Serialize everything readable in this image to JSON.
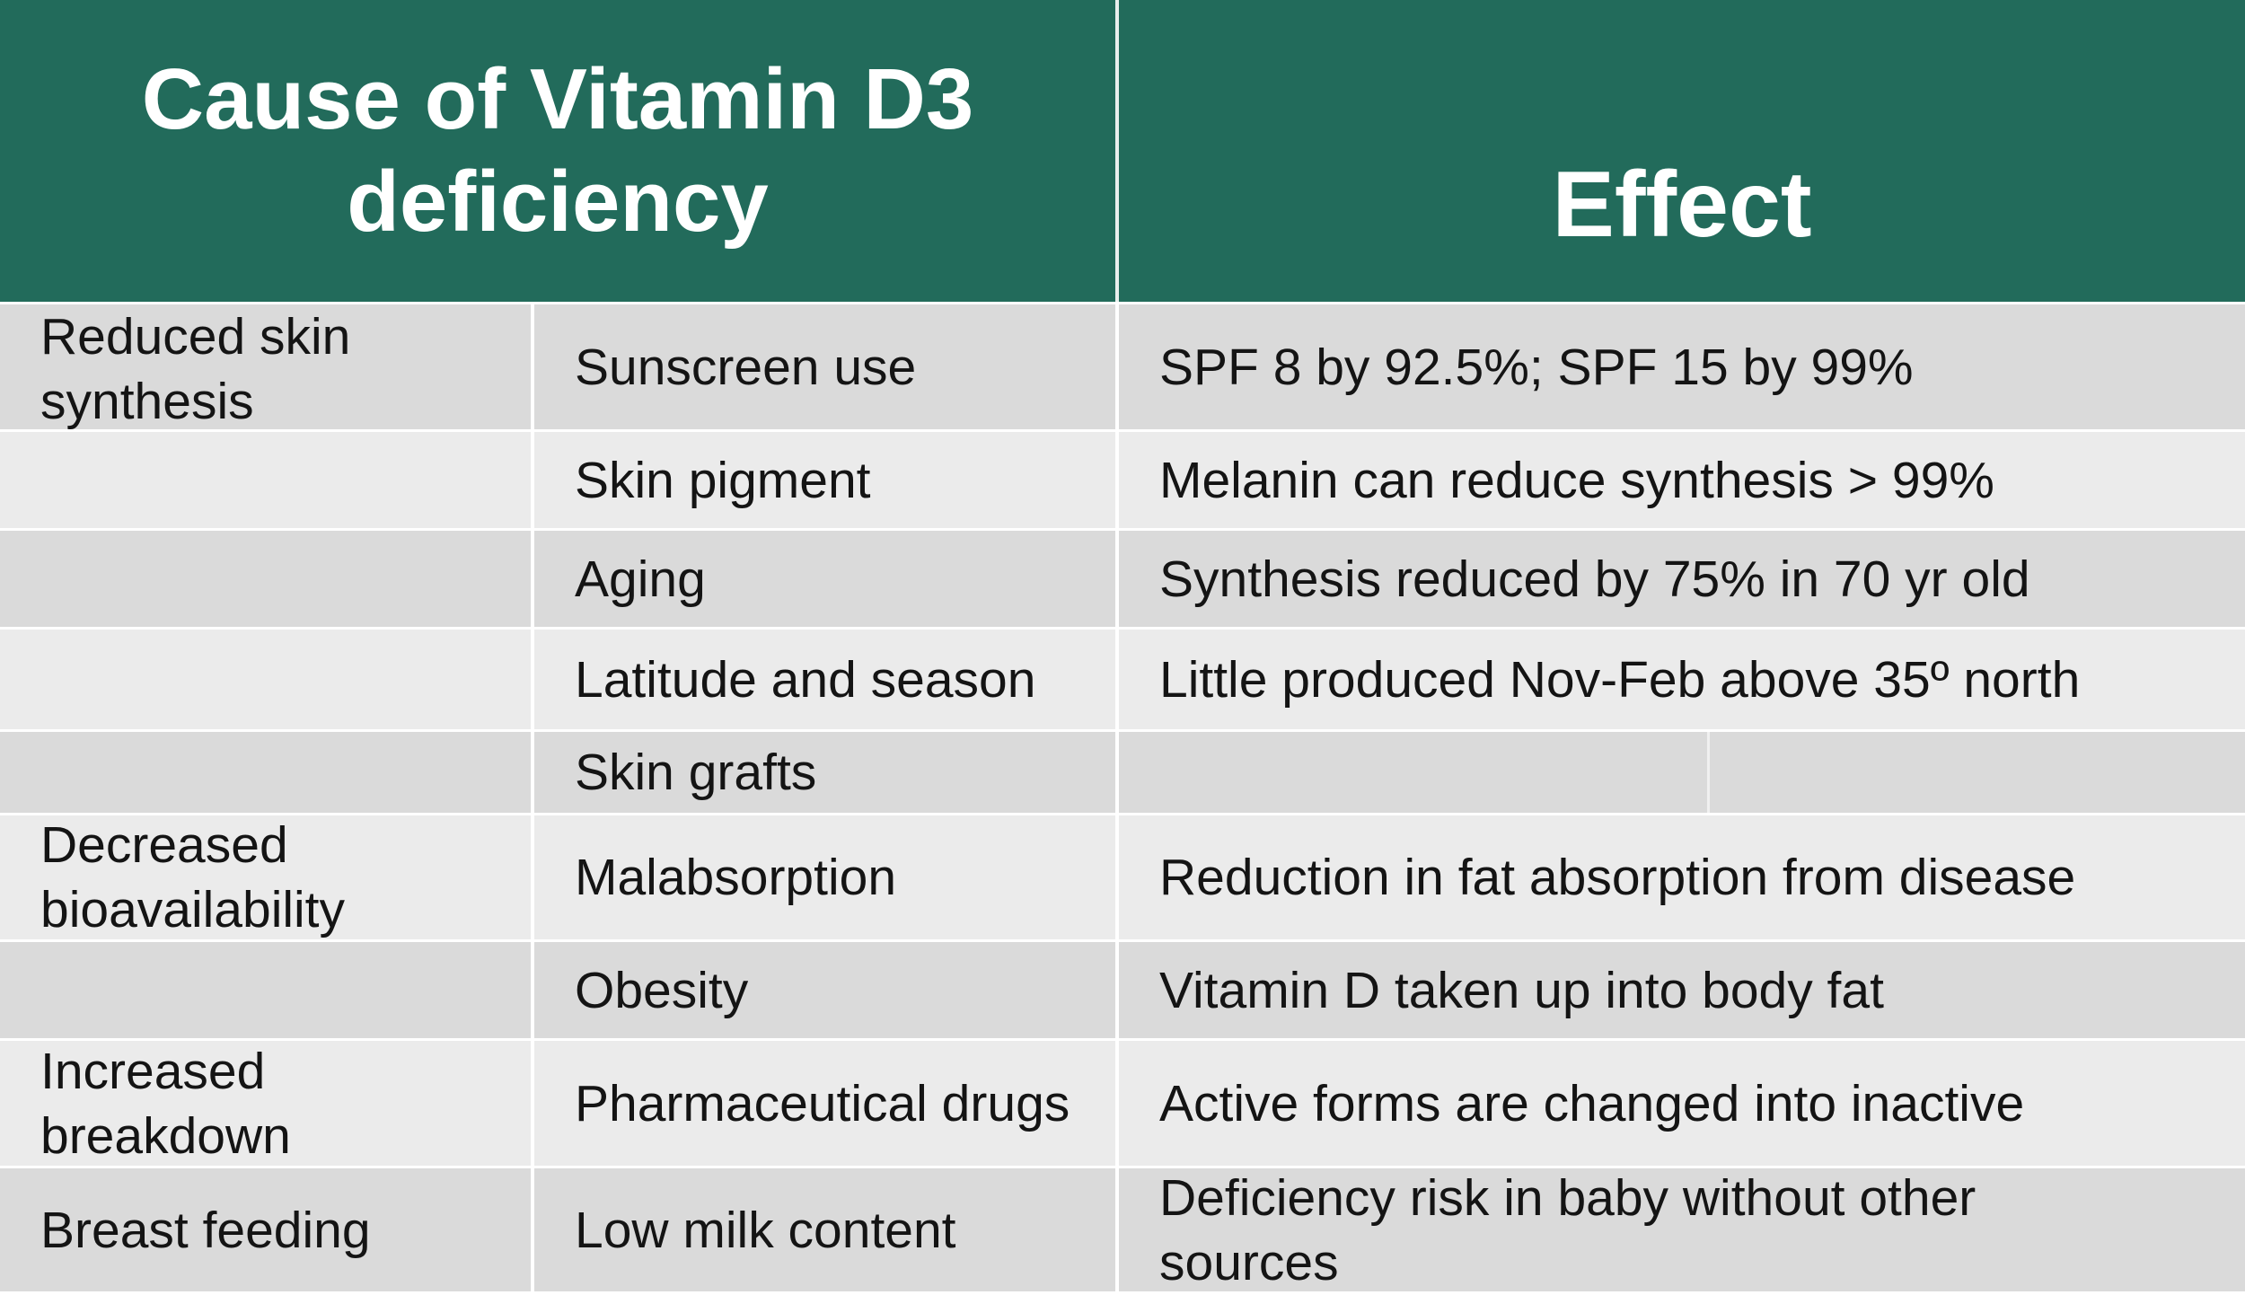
{
  "header": {
    "cause_line1": "Cause of Vitamin D3",
    "cause_line2": "deficiency",
    "effect": "Effect"
  },
  "rows": [
    {
      "category": "Reduced skin synthesis",
      "cause": "Sunscreen use",
      "effect": "SPF 8 by 92.5%; SPF 15 by 99%"
    },
    {
      "category": "",
      "cause": "Skin pigment",
      "effect": "Melanin can reduce synthesis > 99%"
    },
    {
      "category": "",
      "cause": "Aging",
      "effect": "Synthesis reduced by 75% in 70 yr old"
    },
    {
      "category": "",
      "cause": "Latitude and season",
      "effect": "Little produced Nov-Feb above 35º north"
    },
    {
      "category": "",
      "cause": "Skin grafts",
      "effect": ""
    },
    {
      "category": "Decreased bioavailability",
      "cause": "Malabsorption",
      "effect": "Reduction in fat absorption from disease"
    },
    {
      "category": "",
      "cause": "Obesity",
      "effect": "Vitamin D taken up into body fat"
    },
    {
      "category": "Increased breakdown",
      "cause": "Pharmaceutical drugs",
      "effect": "Active forms are changed into inactive"
    },
    {
      "category": "Breast feeding",
      "cause": "Low milk content",
      "effect": "Deficiency risk in baby without other sources"
    }
  ]
}
